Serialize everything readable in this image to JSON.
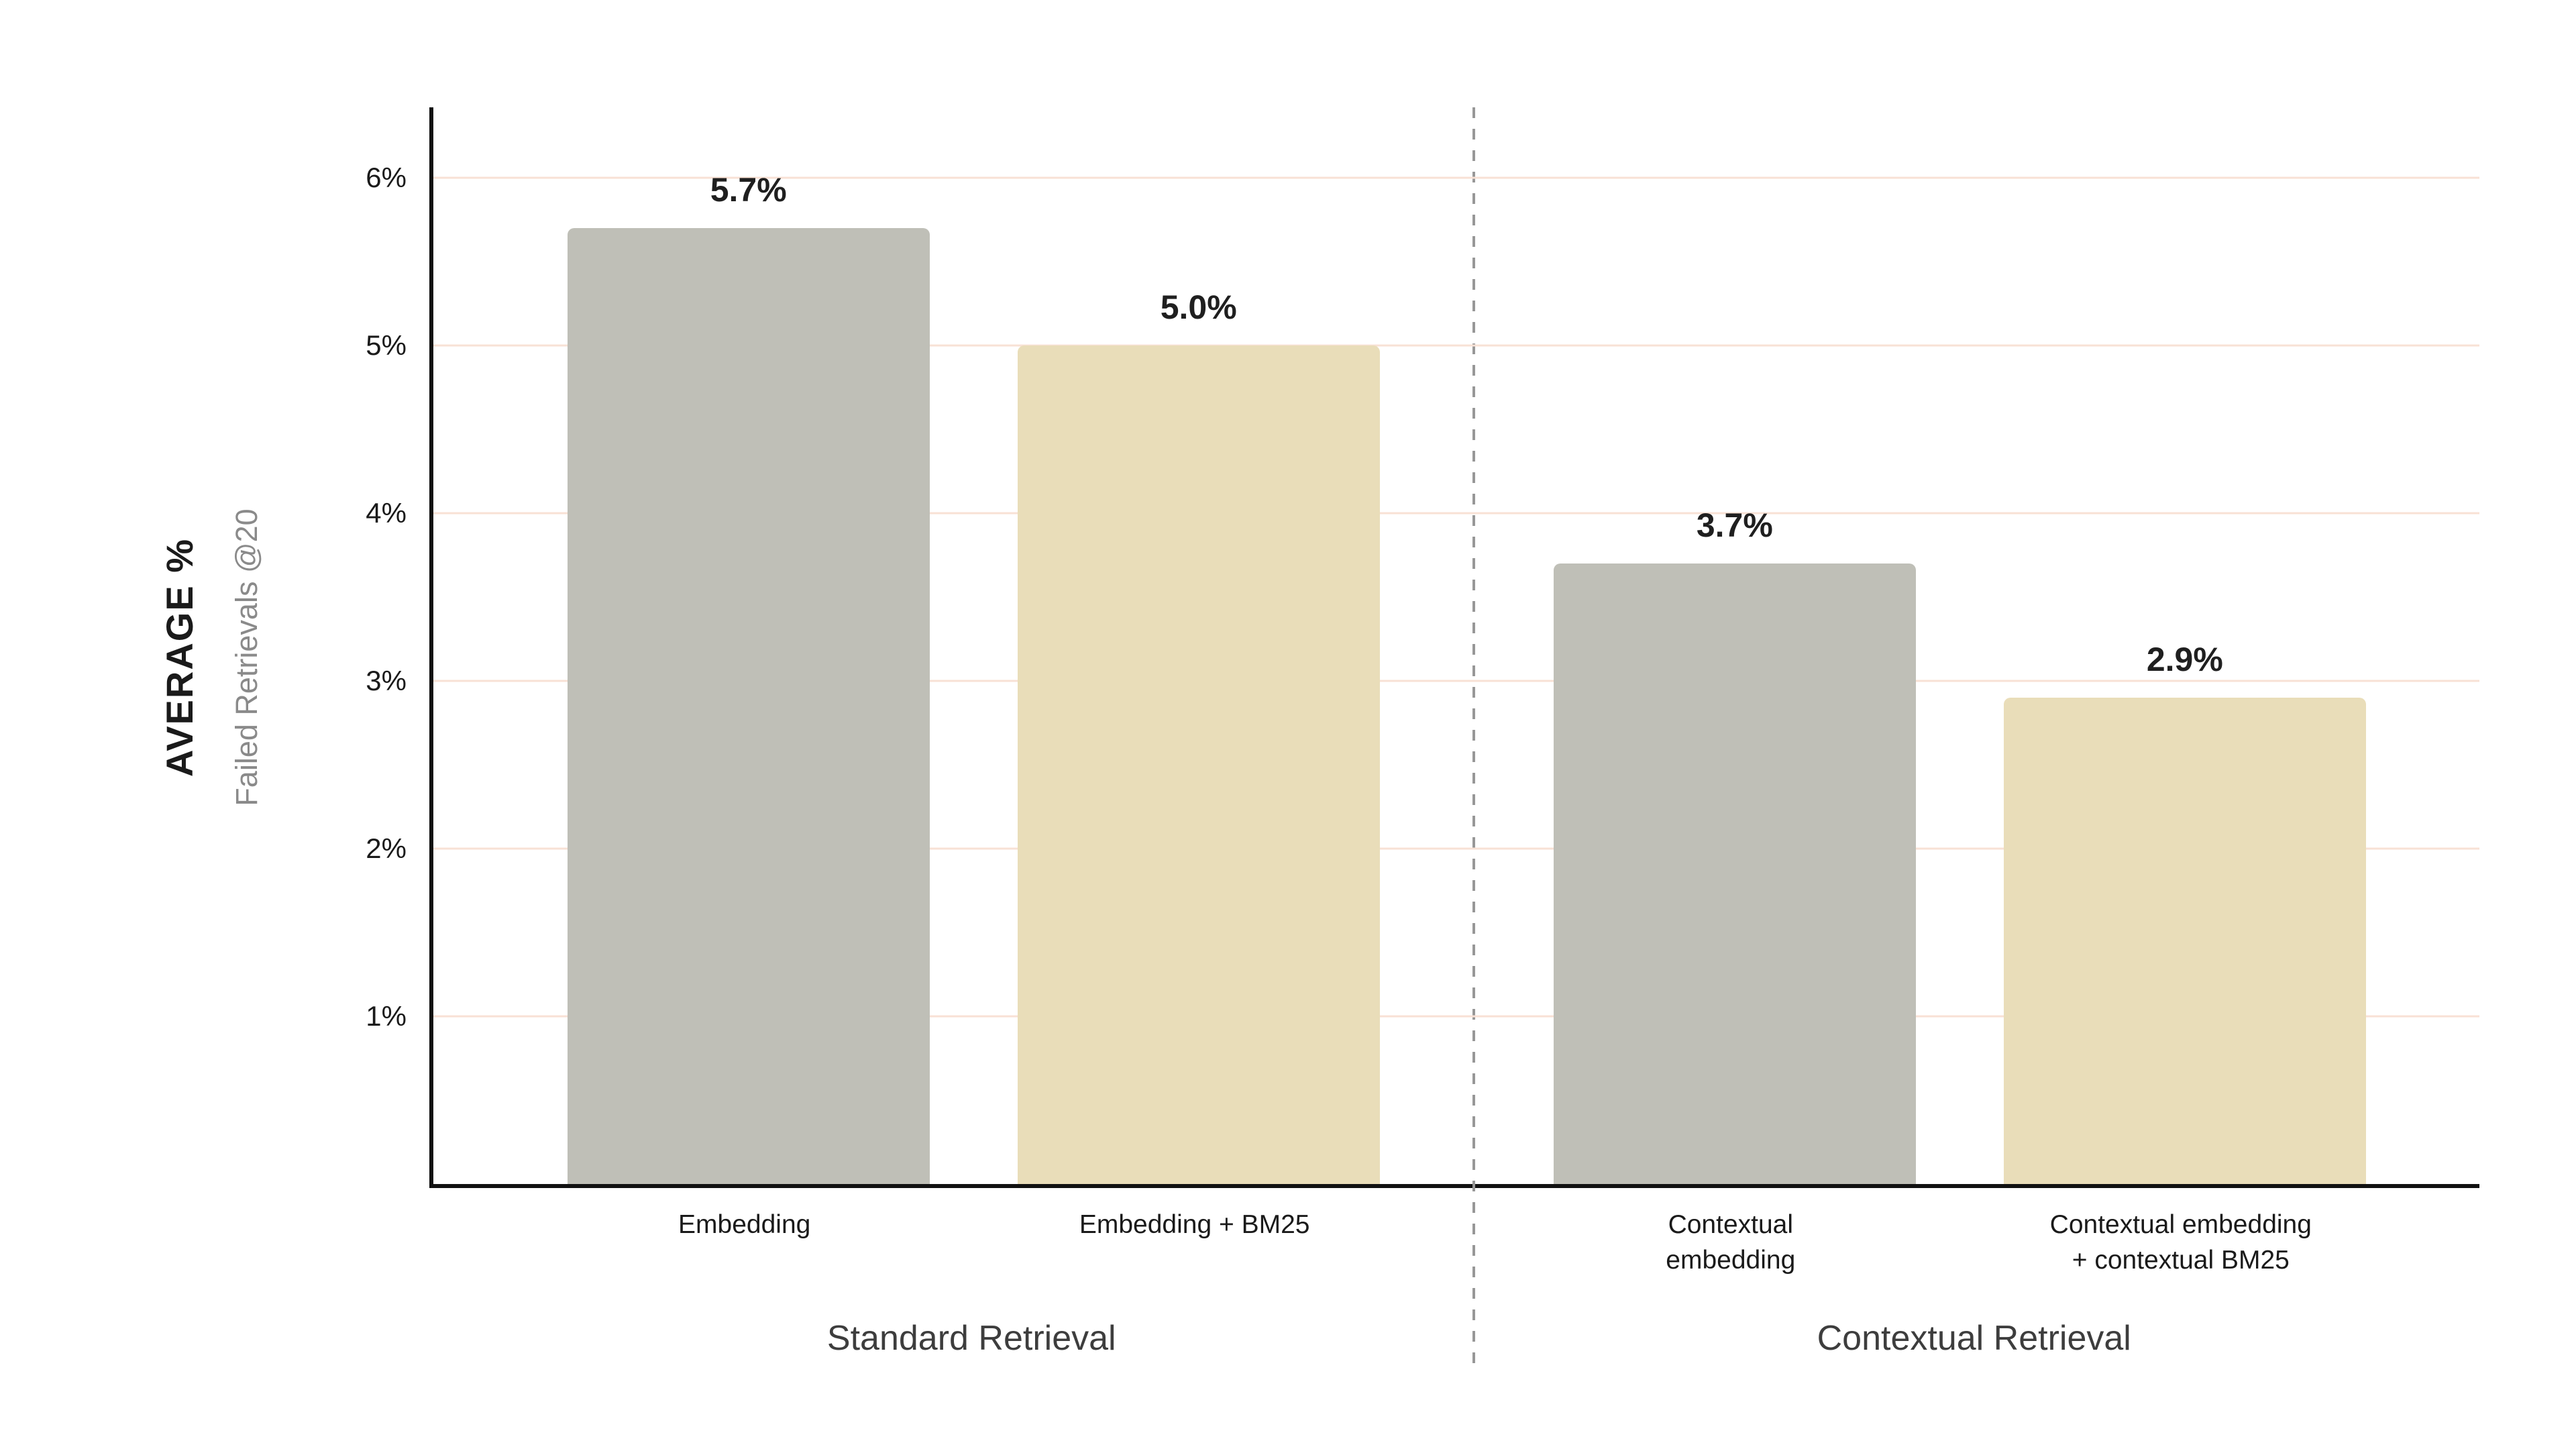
{
  "chart_data": {
    "type": "bar",
    "title": "",
    "y_title": "AVERAGE %",
    "y_subtitle": "Failed Retrievals @20",
    "categories": [
      "Embedding",
      "Embedding + BM25",
      "Contextual\nembedding",
      "Contextual embedding\n+ contextual BM25"
    ],
    "values": [
      5.7,
      5.0,
      3.7,
      2.9
    ],
    "value_labels": [
      "5.7%",
      "5.0%",
      "3.7%",
      "2.9%"
    ],
    "bar_colors": [
      "#bfbfb7",
      "#e9ddb9",
      "#bfbfb7",
      "#e9ddb9"
    ],
    "yticks": [
      1,
      2,
      3,
      4,
      5,
      6
    ],
    "ytick_labels": [
      "1%",
      "2%",
      "3%",
      "4%",
      "5%",
      "6%"
    ],
    "ylim": [
      0,
      6.42
    ],
    "grid": true,
    "gridline_color": "#f8e1d5",
    "axis_color": "#111111",
    "divider_pct": 50.8,
    "bar_centers_pct": [
      15.4,
      37.4,
      63.6,
      85.6
    ],
    "bar_width_pct": 17.7,
    "groups": [
      {
        "label": "Standard Retrieval",
        "center_pct": 26.5
      },
      {
        "label": "Contextual Retrieval",
        "center_pct": 75.5
      }
    ],
    "legend": "none"
  }
}
